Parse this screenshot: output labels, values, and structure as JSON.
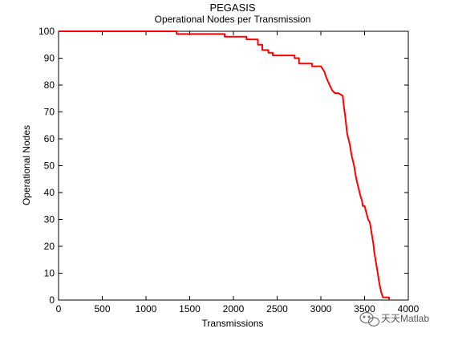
{
  "chart_data": {
    "type": "line",
    "title": "PEGASIS",
    "subtitle": "Operational Nodes per Transmission",
    "xlabel": "Transmissions",
    "ylabel": "Operational Nodes",
    "xlim": [
      0,
      4000
    ],
    "ylim": [
      0,
      100
    ],
    "xticks": [
      0,
      500,
      1000,
      1500,
      2000,
      2500,
      3000,
      3500,
      4000
    ],
    "yticks": [
      0,
      10,
      20,
      30,
      40,
      50,
      60,
      70,
      80,
      90,
      100
    ],
    "grid": false,
    "line_color": "#ff0000",
    "series": [
      {
        "name": "",
        "x": [
          0,
          1350,
          1350,
          1900,
          1900,
          2150,
          2150,
          2280,
          2280,
          2330,
          2330,
          2400,
          2400,
          2450,
          2450,
          2700,
          2700,
          2750,
          2750,
          2900,
          2900,
          3000,
          3040,
          3060,
          3100,
          3130,
          3160,
          3200,
          3250,
          3260,
          3280,
          3300,
          3330,
          3350,
          3380,
          3400,
          3420,
          3450,
          3470,
          3480,
          3500,
          3540,
          3560,
          3600,
          3610,
          3640,
          3670,
          3690,
          3700,
          3710,
          3780,
          3780
        ],
        "y": [
          100,
          100,
          99,
          99,
          98,
          98,
          97,
          97,
          95,
          95,
          93,
          93,
          92,
          92,
          91,
          91,
          90,
          90,
          88,
          88,
          87,
          87,
          85,
          83,
          80,
          78,
          77,
          77,
          76,
          73,
          68,
          62,
          58,
          54,
          50,
          46,
          43,
          39,
          37,
          35,
          35,
          30,
          29,
          21,
          18,
          12,
          6,
          3,
          2,
          1,
          1,
          0
        ]
      }
    ]
  },
  "watermark": {
    "text": "天天Matlab",
    "icon": "wechat-icon"
  }
}
